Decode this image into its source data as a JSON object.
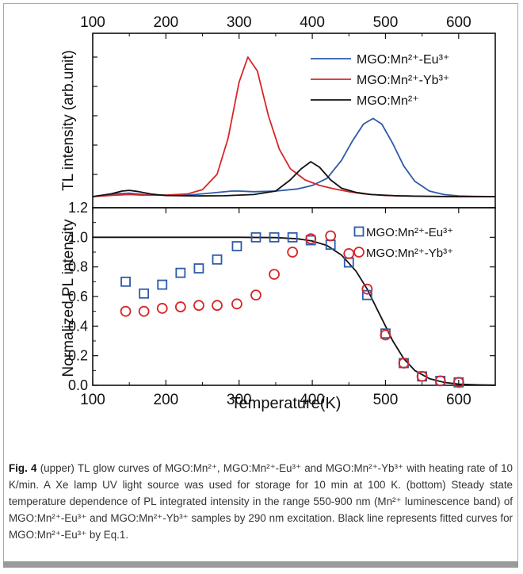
{
  "chart_data": [
    {
      "type": "line",
      "panel": "upper",
      "ylabel": "TL intensity (arb.unit)",
      "top_axis_ticks": [
        "100",
        "200",
        "300",
        "400",
        "500",
        "600"
      ],
      "xlim": [
        100,
        650
      ],
      "legend_position": "top-right",
      "series": [
        {
          "name": "MGO:Mn²⁺-Eu³⁺",
          "color": "#2e5aa8",
          "x": [
            100,
            130,
            150,
            170,
            200,
            230,
            260,
            290,
            300,
            320,
            350,
            380,
            400,
            420,
            440,
            455,
            470,
            483,
            495,
            510,
            525,
            540,
            560,
            580,
            600,
            620,
            650
          ],
          "y": [
            0.0,
            0.02,
            0.025,
            0.015,
            0.01,
            0.01,
            0.025,
            0.04,
            0.04,
            0.035,
            0.04,
            0.055,
            0.08,
            0.13,
            0.26,
            0.4,
            0.52,
            0.56,
            0.52,
            0.38,
            0.22,
            0.11,
            0.04,
            0.015,
            0.005,
            0.002,
            0.0
          ]
        },
        {
          "name": "MGO:Mn²⁺-Yb³⁺",
          "color": "#d62728",
          "x": [
            100,
            130,
            150,
            170,
            200,
            230,
            250,
            270,
            285,
            300,
            312,
            325,
            340,
            355,
            370,
            390,
            410,
            430,
            450,
            470,
            500,
            550,
            600,
            650
          ],
          "y": [
            0.0,
            0.01,
            0.015,
            0.01,
            0.01,
            0.02,
            0.05,
            0.16,
            0.42,
            0.82,
            1.0,
            0.9,
            0.58,
            0.34,
            0.2,
            0.12,
            0.08,
            0.055,
            0.035,
            0.02,
            0.008,
            0.002,
            0.0,
            0.0
          ]
        },
        {
          "name": "MGO:Mn²⁺",
          "color": "#111111",
          "x": [
            100,
            125,
            140,
            150,
            160,
            180,
            200,
            240,
            280,
            320,
            350,
            370,
            385,
            398,
            410,
            425,
            440,
            460,
            480,
            520,
            560,
            600,
            650
          ],
          "y": [
            0.0,
            0.02,
            0.04,
            0.045,
            0.038,
            0.018,
            0.008,
            0.005,
            0.006,
            0.015,
            0.04,
            0.12,
            0.2,
            0.25,
            0.21,
            0.12,
            0.06,
            0.03,
            0.015,
            0.005,
            0.002,
            0.0,
            0.0
          ]
        }
      ]
    },
    {
      "type": "scatter",
      "panel": "lower",
      "xlabel": "Temperature(K)",
      "ylabel": "Normalized PL intensity",
      "xlim": [
        100,
        650
      ],
      "ylim": [
        0.0,
        1.2
      ],
      "x_ticks": [
        "100",
        "200",
        "300",
        "400",
        "500",
        "600"
      ],
      "y_ticks": [
        "0.0",
        "0.2",
        "0.4",
        "0.6",
        "0.8",
        "1.0",
        "1.2"
      ],
      "legend_position": "top-right",
      "series": [
        {
          "name": "MGO:Mn²⁺-Eu³⁺",
          "marker": "square",
          "color": "#2e5aa8",
          "x": [
            145,
            170,
            195,
            220,
            245,
            270,
            297,
            323,
            348,
            373,
            398,
            425,
            450,
            475,
            500,
            525,
            550,
            575,
            600
          ],
          "y": [
            0.7,
            0.62,
            0.68,
            0.76,
            0.79,
            0.85,
            0.94,
            1.0,
            1.0,
            1.0,
            0.98,
            0.95,
            0.83,
            0.61,
            0.35,
            0.15,
            0.06,
            0.03,
            0.02
          ]
        },
        {
          "name": "MGO:Mn²⁺-Yb³⁺",
          "marker": "circle",
          "color": "#d62728",
          "x": [
            145,
            170,
            195,
            220,
            245,
            270,
            297,
            323,
            348,
            373,
            398,
            425,
            450,
            475,
            500,
            525,
            550,
            575,
            600
          ],
          "y": [
            0.5,
            0.5,
            0.52,
            0.53,
            0.54,
            0.54,
            0.55,
            0.61,
            0.75,
            0.9,
            0.99,
            1.01,
            0.89,
            0.65,
            0.34,
            0.15,
            0.06,
            0.03,
            0.02
          ]
        },
        {
          "name": "",
          "type": "line",
          "color": "#111111",
          "x": [
            100,
            150,
            200,
            250,
            300,
            350,
            380,
            400,
            420,
            440,
            460,
            475,
            490,
            500,
            510,
            525,
            540,
            560,
            580,
            600,
            625,
            650
          ],
          "y": [
            1.0,
            1.0,
            1.0,
            1.0,
            1.0,
            0.998,
            0.99,
            0.975,
            0.945,
            0.88,
            0.77,
            0.65,
            0.5,
            0.4,
            0.3,
            0.18,
            0.1,
            0.045,
            0.02,
            0.008,
            0.003,
            0.001
          ]
        }
      ]
    }
  ],
  "caption": {
    "fig_label": "Fig. 4",
    "text": " (upper) TL glow curves of MGO:Mn²⁺, MGO:Mn²⁺-Eu³⁺ and MGO:Mn²⁺-Yb³⁺ with heating rate of 10 K/min. A Xe lamp UV light source was used for storage for 10 min at 100 K. (bottom) Steady state temperature dependence of PL integrated intensity in the range 550-900 nm (Mn²⁺ luminescence band) of MGO:Mn²⁺-Eu³⁺ and MGO:Mn²⁺-Yb³⁺ samples by 290 nm excitation. Black line represents fitted curves for MGO:Mn²⁺-Eu³⁺ by Eq.1."
  }
}
